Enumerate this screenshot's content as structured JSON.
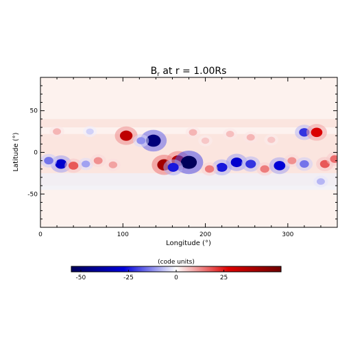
{
  "chart_data": {
    "type": "heatmap",
    "title_main": "B",
    "title_sub": "r",
    "title_rest": " at r = 1.00Rs",
    "xlabel": "Longitude (°)",
    "ylabel": "Latitude (°)",
    "xlim": [
      0,
      360
    ],
    "ylim": [
      -90,
      90
    ],
    "xticks": [
      0,
      100,
      200,
      300
    ],
    "yticks": [
      -50,
      0,
      50
    ],
    "colorbar": {
      "label": "(code units)",
      "range": [
        -55,
        55
      ],
      "ticks": [
        -50,
        -25,
        0,
        25
      ],
      "colors": [
        "#00005a",
        "#0000d8",
        "#ffffff",
        "#dc0000",
        "#6e0000"
      ]
    },
    "grid": false,
    "field_features": [
      {
        "lon": 104,
        "lat": 20,
        "value": 35
      },
      {
        "lon": 137,
        "lat": 14,
        "value": -48
      },
      {
        "lon": 122,
        "lat": 14,
        "value": -12
      },
      {
        "lon": 150,
        "lat": -15,
        "value": 42
      },
      {
        "lon": 167,
        "lat": -10,
        "value": 38
      },
      {
        "lon": 180,
        "lat": -12,
        "value": -55
      },
      {
        "lon": 161,
        "lat": -18,
        "value": -25
      },
      {
        "lon": 25,
        "lat": -14,
        "value": -30
      },
      {
        "lon": 10,
        "lat": -10,
        "value": -15
      },
      {
        "lon": 40,
        "lat": -16,
        "value": 18
      },
      {
        "lon": 55,
        "lat": -14,
        "value": -10
      },
      {
        "lon": 70,
        "lat": -10,
        "value": 12
      },
      {
        "lon": 88,
        "lat": -15,
        "value": 10
      },
      {
        "lon": 220,
        "lat": -18,
        "value": -25
      },
      {
        "lon": 238,
        "lat": -12,
        "value": -30
      },
      {
        "lon": 255,
        "lat": -14,
        "value": -22
      },
      {
        "lon": 272,
        "lat": -20,
        "value": 14
      },
      {
        "lon": 290,
        "lat": -16,
        "value": -28
      },
      {
        "lon": 305,
        "lat": -10,
        "value": 12
      },
      {
        "lon": 320,
        "lat": -14,
        "value": -15
      },
      {
        "lon": 345,
        "lat": -14,
        "value": 18
      },
      {
        "lon": 357,
        "lat": -8,
        "value": 16
      },
      {
        "lon": 320,
        "lat": 24,
        "value": -22
      },
      {
        "lon": 335,
        "lat": 24,
        "value": 28
      },
      {
        "lon": 205,
        "lat": -20,
        "value": 14
      },
      {
        "lon": 200,
        "lat": 14,
        "value": 6
      },
      {
        "lon": 185,
        "lat": 24,
        "value": 8
      },
      {
        "lon": 230,
        "lat": 22,
        "value": 7
      },
      {
        "lon": 255,
        "lat": 18,
        "value": 8
      },
      {
        "lon": 280,
        "lat": 15,
        "value": 6
      },
      {
        "lon": 60,
        "lat": 25,
        "value": -5
      },
      {
        "lon": 20,
        "lat": 25,
        "value": 8
      },
      {
        "lon": 340,
        "lat": -35,
        "value": -8
      }
    ]
  }
}
